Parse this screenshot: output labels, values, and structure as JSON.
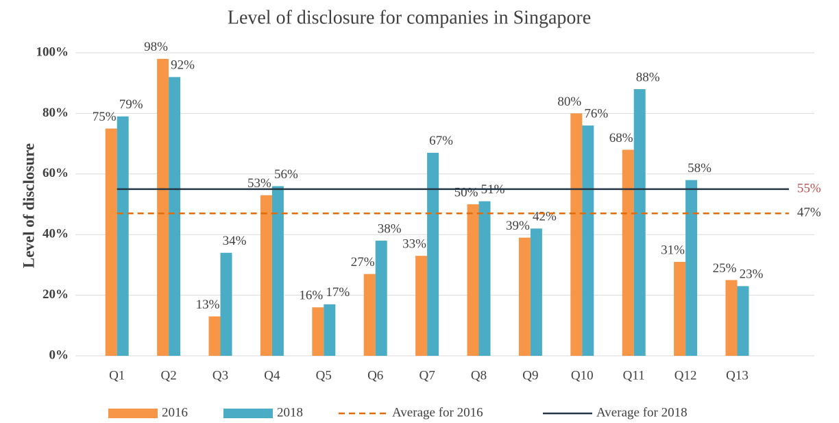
{
  "chart_data": {
    "type": "bar",
    "title": "Level of disclosure for companies in Singapore",
    "y_label": "Level of disclosure",
    "categories": [
      "Q1",
      "Q2",
      "Q3",
      "Q4",
      "Q5",
      "Q6",
      "Q7",
      "Q8",
      "Q9",
      "Q10",
      "Q11",
      "Q12",
      "Q13"
    ],
    "series": [
      {
        "name": "2016",
        "color": "#f79646",
        "values": [
          75,
          98,
          13,
          53,
          16,
          27,
          33,
          50,
          39,
          80,
          68,
          31,
          25
        ],
        "value_labels": [
          "75%",
          "98%",
          "13%",
          "53%",
          "16%",
          "27%",
          "33%",
          "50%",
          "39%",
          "80%",
          "68%",
          "31%",
          "25%"
        ]
      },
      {
        "name": "2018",
        "color": "#4bacc6",
        "values": [
          79,
          92,
          34,
          56,
          17,
          38,
          67,
          51,
          42,
          76,
          88,
          58,
          23
        ],
        "value_labels": [
          "79%",
          "92%",
          "34%",
          "56%",
          "17%",
          "38%",
          "67%",
          "51%",
          "42%",
          "76%",
          "88%",
          "58%",
          "23%"
        ]
      }
    ],
    "reference_lines": [
      {
        "name": "Average for 2016",
        "value": 47,
        "value_label": "47%",
        "color": "#e36c09",
        "dashed": true,
        "label_color": "#404040"
      },
      {
        "name": "Average for 2018",
        "value": 55,
        "value_label": "55%",
        "color": "#253645",
        "dashed": false,
        "label_color": "#c0504d"
      }
    ],
    "ylim": [
      0,
      100
    ],
    "yticks": [
      {
        "value": 0,
        "label": "0%"
      },
      {
        "value": 20,
        "label": "20%"
      },
      {
        "value": 40,
        "label": "40%"
      },
      {
        "value": 60,
        "label": "60%"
      },
      {
        "value": 80,
        "label": "80%"
      },
      {
        "value": 100,
        "label": "100%"
      }
    ],
    "grid": true,
    "legend": "bottom"
  }
}
